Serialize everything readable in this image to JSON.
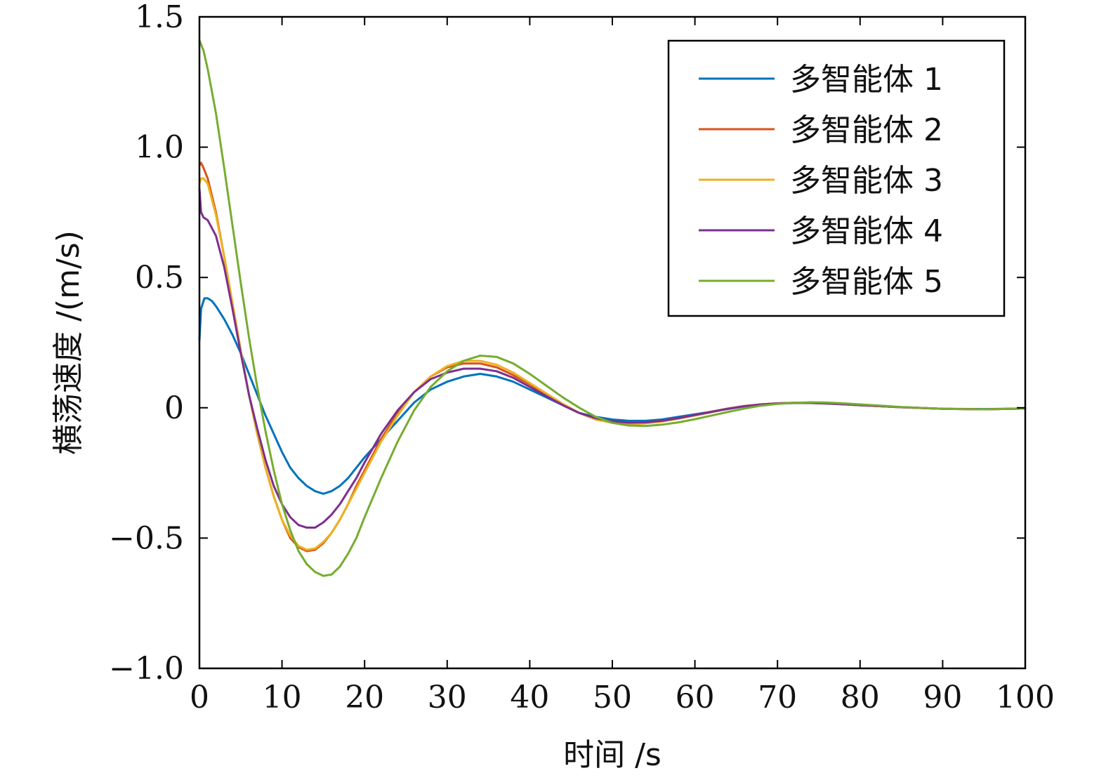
{
  "chart_data": {
    "type": "line",
    "title": "",
    "xlabel": "时间 /s",
    "ylabel": "横荡速度 /(m/s)",
    "xlim": [
      0,
      100
    ],
    "ylim": [
      -1.0,
      1.5
    ],
    "xticks": [
      0,
      10,
      20,
      30,
      40,
      50,
      60,
      70,
      80,
      90,
      100
    ],
    "xtick_labels": [
      "0",
      "10",
      "20",
      "30",
      "40",
      "50",
      "60",
      "70",
      "80",
      "90",
      "100"
    ],
    "yticks": [
      -1.0,
      -0.5,
      0,
      0.5,
      1.0,
      1.5
    ],
    "ytick_labels": [
      "−1.0",
      "−0.5",
      "0",
      "0.5",
      "1.0",
      "1.5"
    ],
    "grid": false,
    "legend_position": "top-right",
    "series": [
      {
        "name": "多智能体 1",
        "color": "#0072BD",
        "x": [
          0,
          0.2,
          0.6,
          1,
          1.5,
          2,
          3,
          4,
          5,
          6,
          7,
          8,
          9,
          10,
          11,
          12,
          13,
          14,
          15,
          16,
          17,
          18,
          19,
          20,
          22,
          24,
          26,
          28,
          30,
          32,
          34,
          36,
          38,
          40,
          42,
          44,
          46,
          48,
          50,
          52,
          54,
          56,
          58,
          60,
          62,
          64,
          66,
          68,
          70,
          72,
          74,
          76,
          78,
          80,
          85,
          90,
          95,
          100
        ],
        "y": [
          0.26,
          0.38,
          0.42,
          0.42,
          0.41,
          0.39,
          0.34,
          0.28,
          0.21,
          0.13,
          0.05,
          -0.03,
          -0.1,
          -0.17,
          -0.23,
          -0.27,
          -0.3,
          -0.32,
          -0.33,
          -0.32,
          -0.3,
          -0.27,
          -0.23,
          -0.19,
          -0.12,
          -0.05,
          0.02,
          0.07,
          0.1,
          0.12,
          0.13,
          0.12,
          0.1,
          0.07,
          0.04,
          0.01,
          -0.02,
          -0.035,
          -0.045,
          -0.05,
          -0.05,
          -0.045,
          -0.035,
          -0.025,
          -0.015,
          -0.005,
          0.005,
          0.012,
          0.016,
          0.018,
          0.018,
          0.016,
          0.013,
          0.01,
          0.002,
          -0.004,
          -0.005,
          -0.003
        ]
      },
      {
        "name": "多智能体 2",
        "color": "#D95319",
        "x": [
          0,
          0.2,
          0.5,
          1,
          2,
          3,
          4,
          5,
          6,
          7,
          8,
          9,
          10,
          11,
          12,
          13,
          14,
          15,
          16,
          17,
          18,
          19,
          20,
          22,
          24,
          26,
          28,
          30,
          32,
          34,
          36,
          38,
          40,
          42,
          44,
          46,
          48,
          50,
          52,
          54,
          56,
          58,
          60,
          62,
          64,
          66,
          68,
          70,
          72,
          74,
          76,
          78,
          80,
          85,
          90,
          95,
          100
        ],
        "y": [
          0.93,
          0.94,
          0.92,
          0.88,
          0.75,
          0.58,
          0.4,
          0.22,
          0.05,
          -0.1,
          -0.23,
          -0.34,
          -0.43,
          -0.5,
          -0.535,
          -0.55,
          -0.545,
          -0.52,
          -0.48,
          -0.43,
          -0.37,
          -0.3,
          -0.24,
          -0.12,
          -0.02,
          0.06,
          0.12,
          0.155,
          0.17,
          0.17,
          0.155,
          0.125,
          0.09,
          0.05,
          0.01,
          -0.02,
          -0.045,
          -0.057,
          -0.06,
          -0.058,
          -0.05,
          -0.04,
          -0.028,
          -0.015,
          -0.003,
          0.007,
          0.013,
          0.017,
          0.019,
          0.019,
          0.017,
          0.014,
          0.01,
          0.002,
          -0.004,
          -0.006,
          -0.003
        ]
      },
      {
        "name": "多智能体 3",
        "color": "#EDB120",
        "x": [
          0,
          0.2,
          0.5,
          1,
          2,
          3,
          4,
          5,
          6,
          7,
          8,
          9,
          10,
          11,
          12,
          13,
          14,
          15,
          16,
          17,
          18,
          19,
          20,
          22,
          24,
          26,
          28,
          30,
          32,
          34,
          36,
          38,
          40,
          42,
          44,
          46,
          48,
          50,
          52,
          54,
          56,
          58,
          60,
          62,
          64,
          66,
          68,
          70,
          72,
          74,
          76,
          78,
          80,
          85,
          90,
          95,
          100
        ],
        "y": [
          0.86,
          0.88,
          0.88,
          0.86,
          0.74,
          0.58,
          0.4,
          0.22,
          0.05,
          -0.1,
          -0.23,
          -0.34,
          -0.43,
          -0.49,
          -0.53,
          -0.545,
          -0.54,
          -0.515,
          -0.48,
          -0.43,
          -0.37,
          -0.31,
          -0.25,
          -0.13,
          -0.03,
          0.06,
          0.12,
          0.16,
          0.18,
          0.18,
          0.165,
          0.135,
          0.095,
          0.055,
          0.015,
          -0.02,
          -0.045,
          -0.058,
          -0.062,
          -0.06,
          -0.053,
          -0.042,
          -0.03,
          -0.017,
          -0.004,
          0.006,
          0.013,
          0.017,
          0.019,
          0.019,
          0.017,
          0.014,
          0.01,
          0.002,
          -0.004,
          -0.006,
          -0.003
        ]
      },
      {
        "name": "多智能体 4",
        "color": "#7E2F8E",
        "x": [
          0,
          0.2,
          0.5,
          1,
          2,
          3,
          4,
          5,
          6,
          7,
          8,
          9,
          10,
          11,
          12,
          13,
          14,
          15,
          16,
          17,
          18,
          19,
          20,
          22,
          24,
          26,
          28,
          30,
          32,
          34,
          36,
          38,
          40,
          42,
          44,
          46,
          48,
          50,
          52,
          54,
          56,
          58,
          60,
          62,
          64,
          66,
          68,
          70,
          72,
          74,
          76,
          78,
          80,
          85,
          90,
          95,
          100
        ],
        "y": [
          0.84,
          0.75,
          0.73,
          0.72,
          0.66,
          0.54,
          0.38,
          0.21,
          0.05,
          -0.08,
          -0.2,
          -0.3,
          -0.37,
          -0.42,
          -0.45,
          -0.46,
          -0.46,
          -0.44,
          -0.41,
          -0.37,
          -0.32,
          -0.27,
          -0.21,
          -0.1,
          -0.01,
          0.06,
          0.11,
          0.135,
          0.15,
          0.15,
          0.14,
          0.115,
          0.08,
          0.045,
          0.01,
          -0.02,
          -0.04,
          -0.052,
          -0.057,
          -0.056,
          -0.05,
          -0.04,
          -0.028,
          -0.016,
          -0.004,
          0.006,
          0.013,
          0.017,
          0.019,
          0.019,
          0.017,
          0.014,
          0.01,
          0.002,
          -0.004,
          -0.006,
          -0.003
        ]
      },
      {
        "name": "多智能体 5",
        "color": "#77AC30",
        "x": [
          0,
          0.5,
          1,
          2,
          3,
          4,
          5,
          6,
          7,
          8,
          9,
          10,
          11,
          12,
          13,
          14,
          15,
          16,
          17,
          18,
          19,
          20,
          22,
          24,
          26,
          28,
          30,
          32,
          34,
          36,
          38,
          40,
          42,
          44,
          46,
          48,
          50,
          52,
          54,
          56,
          58,
          60,
          62,
          64,
          66,
          68,
          70,
          72,
          74,
          76,
          78,
          80,
          85,
          90,
          95,
          100
        ],
        "y": [
          1.41,
          1.37,
          1.3,
          1.13,
          0.92,
          0.7,
          0.48,
          0.27,
          0.08,
          -0.09,
          -0.24,
          -0.37,
          -0.47,
          -0.55,
          -0.6,
          -0.63,
          -0.645,
          -0.64,
          -0.61,
          -0.56,
          -0.5,
          -0.42,
          -0.27,
          -0.13,
          -0.01,
          0.08,
          0.14,
          0.18,
          0.2,
          0.195,
          0.17,
          0.13,
          0.085,
          0.04,
          0.0,
          -0.035,
          -0.058,
          -0.068,
          -0.07,
          -0.065,
          -0.056,
          -0.044,
          -0.03,
          -0.016,
          -0.003,
          0.008,
          0.015,
          0.019,
          0.021,
          0.02,
          0.017,
          0.013,
          0.003,
          -0.004,
          -0.006,
          -0.003
        ]
      }
    ]
  }
}
